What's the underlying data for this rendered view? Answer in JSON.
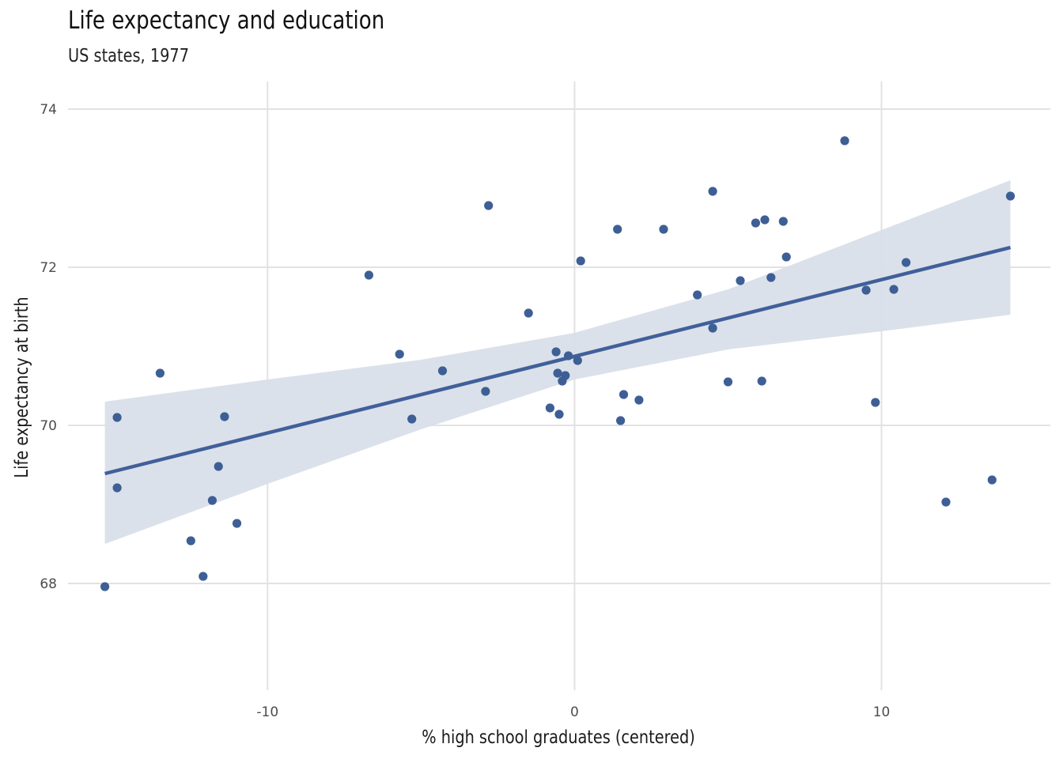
{
  "chart_data": {
    "type": "scatter",
    "title": "Life expectancy and education",
    "subtitle": "US states, 1977",
    "xlabel": "% high school graduates (centered)",
    "ylabel": "Life expectancy at birth",
    "xlim": [
      -16.5,
      15.5
    ],
    "ylim": [
      66.65,
      74.35
    ],
    "x_ticks": [
      -10,
      0,
      10
    ],
    "x_tick_labels": [
      "-10",
      "0",
      "10"
    ],
    "y_ticks": [
      68,
      70,
      72,
      74
    ],
    "y_tick_labels": [
      "68",
      "70",
      "72",
      "74"
    ],
    "grid": true,
    "colors": {
      "points": "#3e5f95",
      "fit_line": "#40609a",
      "confidence_band": "#d9dfe9",
      "gridlines": "#e2e2e2",
      "background": "#ffffff"
    },
    "points": [
      {
        "x": -15.3,
        "y": 67.96
      },
      {
        "x": -14.9,
        "y": 70.1
      },
      {
        "x": -14.9,
        "y": 69.21
      },
      {
        "x": -13.5,
        "y": 70.66
      },
      {
        "x": -12.5,
        "y": 68.54
      },
      {
        "x": -12.1,
        "y": 68.09
      },
      {
        "x": -11.8,
        "y": 69.05
      },
      {
        "x": -11.6,
        "y": 69.48
      },
      {
        "x": -11.4,
        "y": 70.11
      },
      {
        "x": -11.0,
        "y": 68.76
      },
      {
        "x": -6.7,
        "y": 71.9
      },
      {
        "x": -5.7,
        "y": 70.9
      },
      {
        "x": -5.3,
        "y": 70.08
      },
      {
        "x": -4.3,
        "y": 70.69
      },
      {
        "x": -2.9,
        "y": 70.43
      },
      {
        "x": -2.8,
        "y": 72.78
      },
      {
        "x": -1.5,
        "y": 71.42
      },
      {
        "x": -0.8,
        "y": 70.22
      },
      {
        "x": -0.6,
        "y": 70.93
      },
      {
        "x": -0.55,
        "y": 70.66
      },
      {
        "x": -0.5,
        "y": 70.14
      },
      {
        "x": -0.4,
        "y": 70.56
      },
      {
        "x": -0.3,
        "y": 70.63
      },
      {
        "x": -0.2,
        "y": 70.88
      },
      {
        "x": 0.1,
        "y": 70.82
      },
      {
        "x": 0.2,
        "y": 72.08
      },
      {
        "x": 1.4,
        "y": 72.48
      },
      {
        "x": 1.5,
        "y": 70.06
      },
      {
        "x": 1.6,
        "y": 70.39
      },
      {
        "x": 2.1,
        "y": 70.32
      },
      {
        "x": 2.9,
        "y": 72.48
      },
      {
        "x": 4.0,
        "y": 71.65
      },
      {
        "x": 4.5,
        "y": 72.96
      },
      {
        "x": 4.5,
        "y": 71.23
      },
      {
        "x": 5.0,
        "y": 70.55
      },
      {
        "x": 5.4,
        "y": 71.83
      },
      {
        "x": 5.9,
        "y": 72.56
      },
      {
        "x": 6.1,
        "y": 70.56
      },
      {
        "x": 6.2,
        "y": 72.6
      },
      {
        "x": 6.4,
        "y": 71.87
      },
      {
        "x": 6.8,
        "y": 72.58
      },
      {
        "x": 6.9,
        "y": 72.13
      },
      {
        "x": 8.8,
        "y": 73.6
      },
      {
        "x": 9.5,
        "y": 71.71
      },
      {
        "x": 9.8,
        "y": 70.29
      },
      {
        "x": 10.4,
        "y": 71.72
      },
      {
        "x": 10.8,
        "y": 72.06
      },
      {
        "x": 12.1,
        "y": 69.03
      },
      {
        "x": 13.6,
        "y": 69.31
      },
      {
        "x": 14.2,
        "y": 72.9
      }
    ],
    "fit": {
      "x": [
        -15.3,
        14.2
      ],
      "y": [
        69.39,
        72.25
      ]
    },
    "confidence_band": {
      "x": [
        -15.3,
        -10,
        -5,
        0,
        5,
        10,
        14.2
      ],
      "upper": [
        70.3,
        70.58,
        70.83,
        71.17,
        71.72,
        72.47,
        73.1
      ],
      "lower": [
        68.5,
        69.26,
        69.95,
        70.58,
        70.96,
        71.19,
        71.4
      ]
    }
  }
}
